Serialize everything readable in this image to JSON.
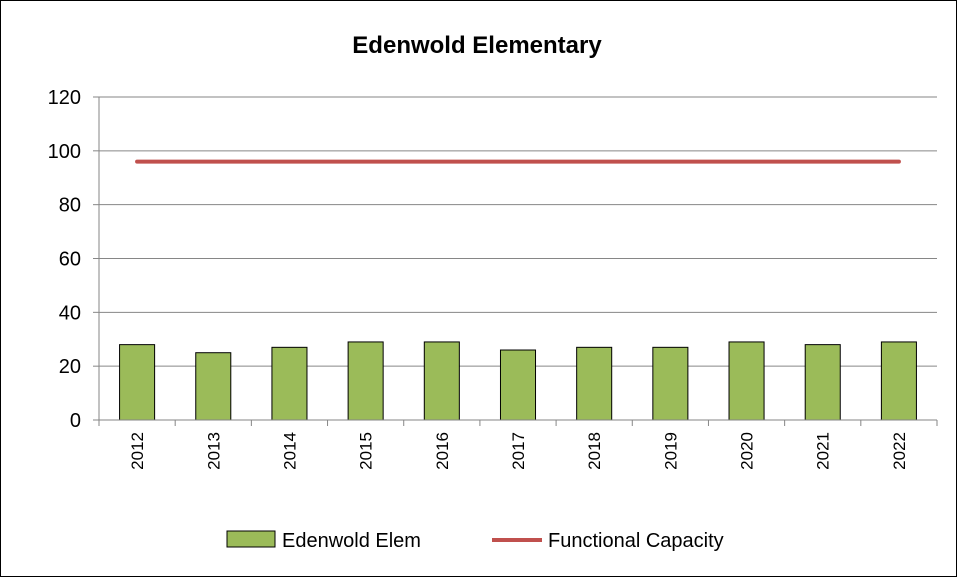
{
  "chart_data": {
    "type": "bar",
    "title": "Edenwold Elementary",
    "categories": [
      "2012",
      "2013",
      "2014",
      "2015",
      "2016",
      "2017",
      "2018",
      "2019",
      "2020",
      "2021",
      "2022"
    ],
    "series": [
      {
        "name": "Edenwold Elem",
        "type": "bar",
        "color": "#9bbb59",
        "values": [
          28,
          25,
          27,
          29,
          29,
          26,
          27,
          27,
          29,
          28,
          29
        ]
      },
      {
        "name": "Functional Capacity",
        "type": "line",
        "color": "#c0504d",
        "values": [
          96,
          96,
          96,
          96,
          96,
          96,
          96,
          96,
          96,
          96,
          96
        ]
      }
    ],
    "yticks": [
      "0",
      "20",
      "40",
      "60",
      "80",
      "100",
      "120"
    ],
    "ylim": [
      0,
      120
    ],
    "grid": true,
    "legend_position": "bottom"
  }
}
